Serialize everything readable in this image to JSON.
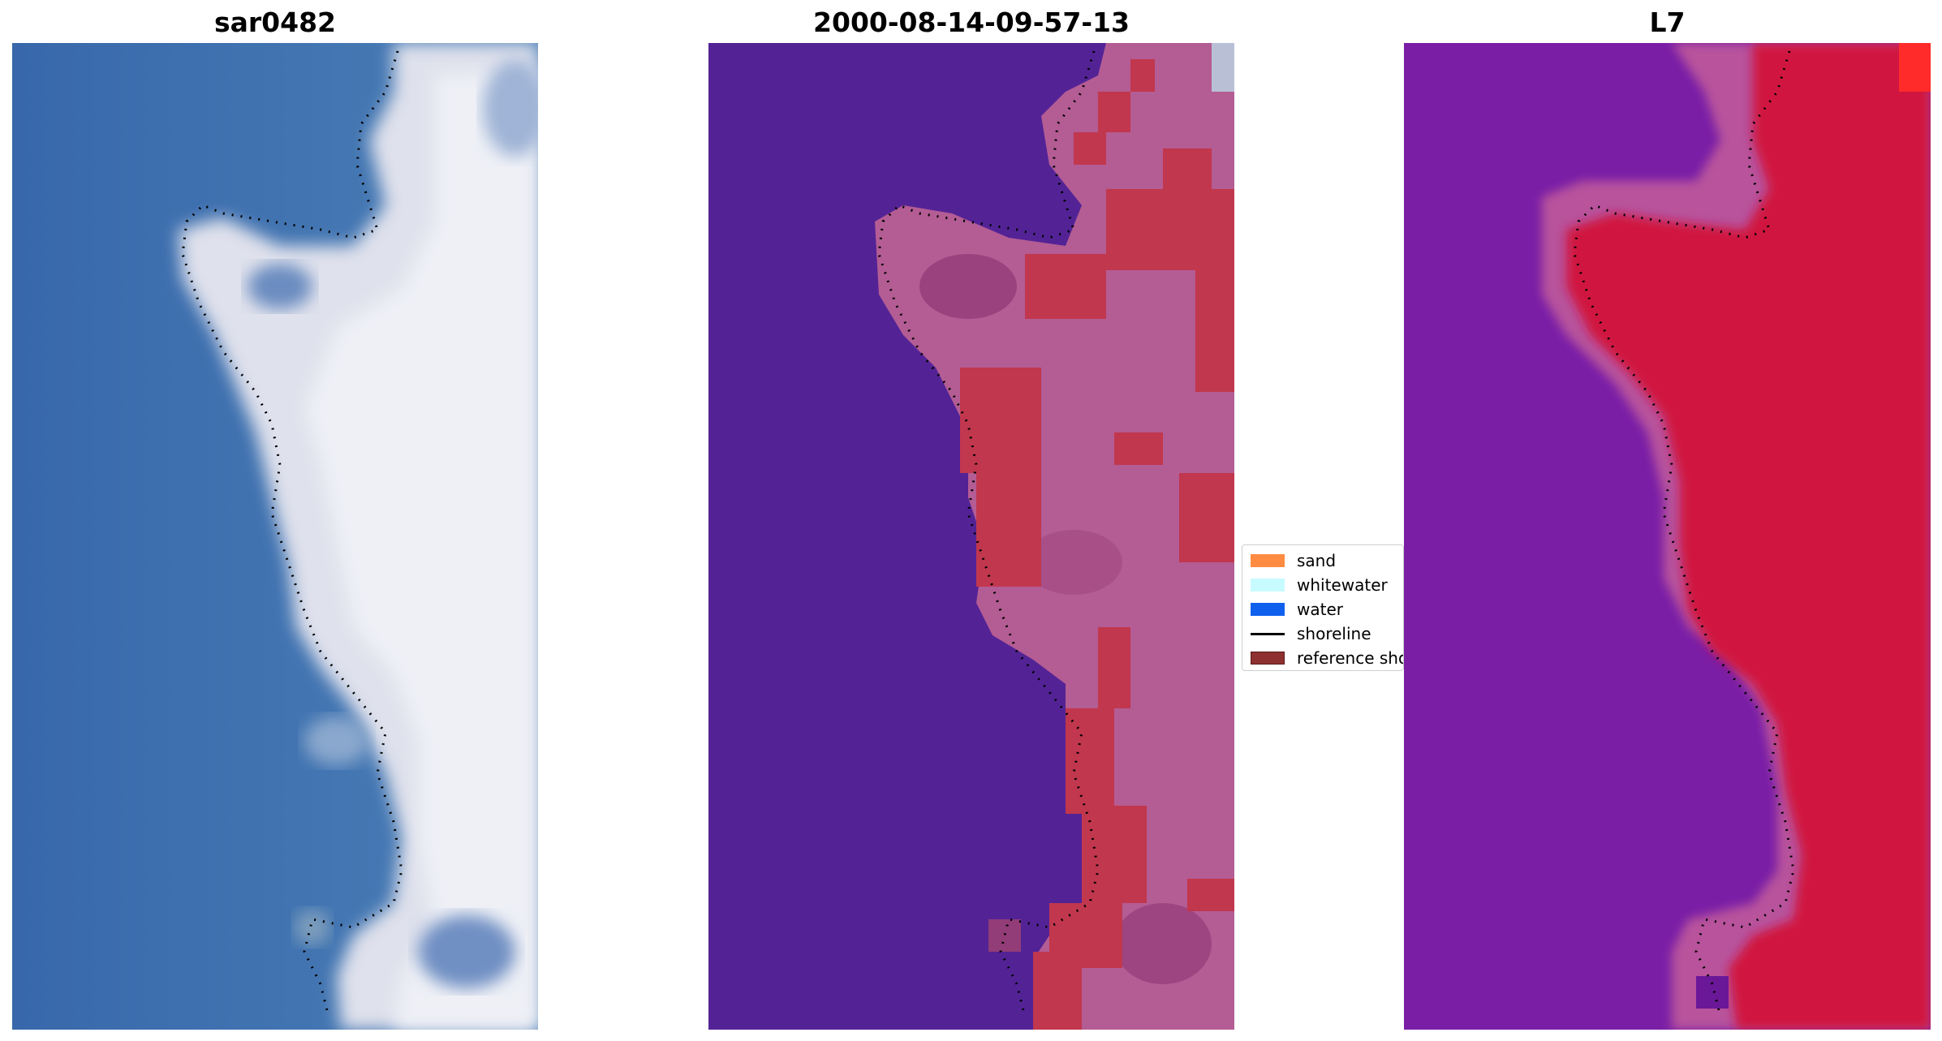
{
  "panels": [
    {
      "title": "sar0482"
    },
    {
      "title": "2000-08-14-09-57-13"
    },
    {
      "title": "L7"
    }
  ],
  "legend": {
    "items": [
      {
        "label": "sand",
        "color": "#ff8c42"
      },
      {
        "label": "whitewater",
        "color": "#c8fbff"
      },
      {
        "label": "water",
        "color": "#1060ee"
      },
      {
        "label": "shoreline",
        "color": "#000000"
      },
      {
        "label": "reference shoreline",
        "color": "#8e3030"
      }
    ]
  },
  "colors": {
    "ocean_rgb": "#3d6fad",
    "surf_rgb": "#e6e8f0",
    "ocean_class": "#532396",
    "land_class": "#b45c94",
    "sand_class": "#c1374d",
    "ocean_index": "#7a1ea6",
    "land_index": "#d0133f",
    "bottom_band": "#b95e94"
  }
}
